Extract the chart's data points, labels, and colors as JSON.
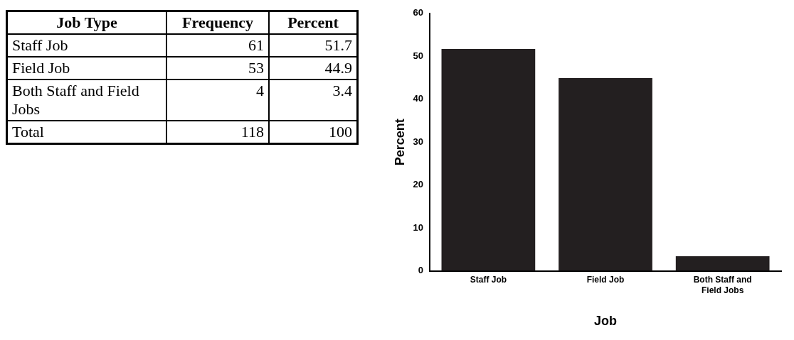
{
  "chart_data": [
    {
      "type": "other",
      "annotations": [
        "Job Type",
        "Frequency",
        "Percent",
        "Staff Job",
        "61",
        "51.7",
        "Field Job",
        "53",
        "44.9",
        "Both Staff and Field Jobs",
        "4",
        "3.4",
        "Total",
        "118",
        "100"
      ]
    },
    {
      "type": "bar",
      "xlabel": "Job",
      "ylabel": "Percent",
      "categories": [
        "Staff Job",
        "Field Job",
        "Both Staff and Field Jobs"
      ],
      "values": [
        51.7,
        44.9,
        3.4
      ],
      "color": "#231f20",
      "ylim": [
        0,
        60
      ],
      "yticks": [
        0,
        10,
        20,
        30,
        40,
        50,
        60
      ],
      "grid": false,
      "legend": false
    }
  ]
}
